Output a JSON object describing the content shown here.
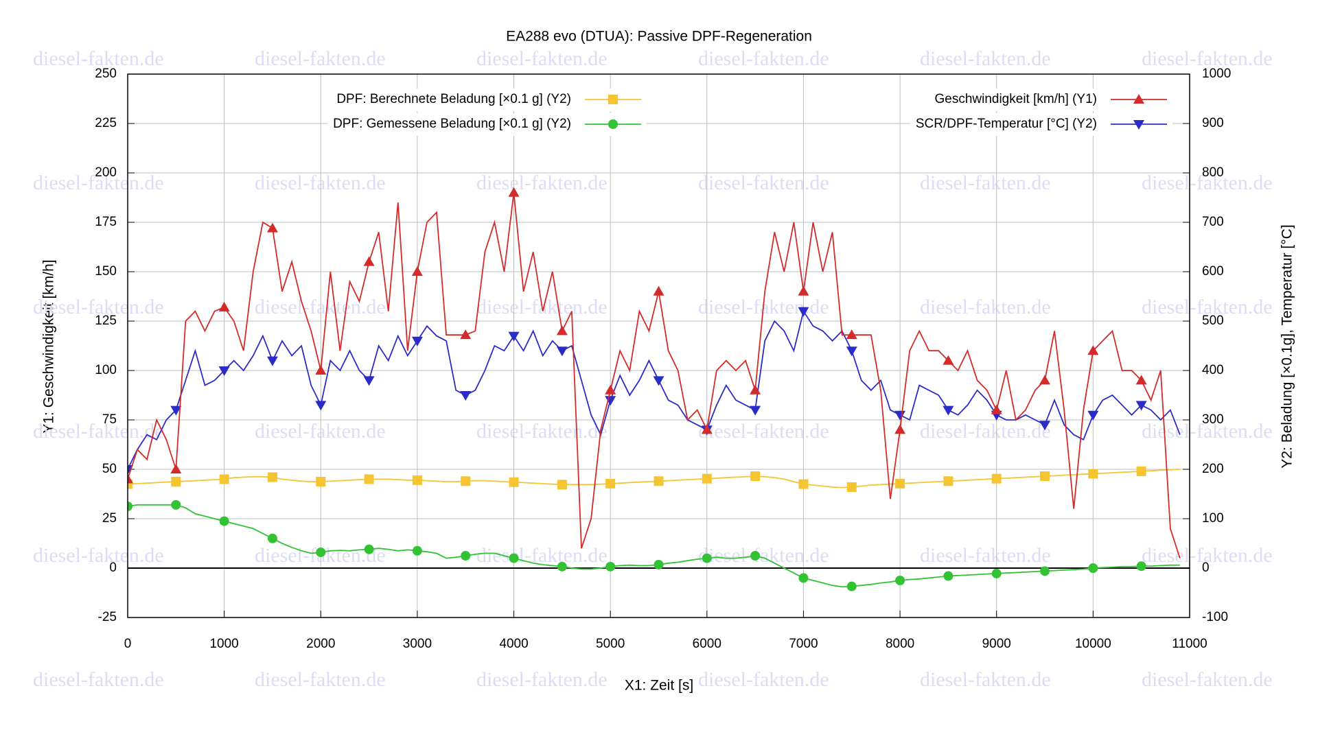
{
  "chart_data": {
    "type": "line",
    "title": "EA288 evo (DTUA): Passive DPF-Regeneration",
    "xlabel": "X1: Zeit [s]",
    "ylabel": "Y1: Geschwindigkeit [km/h]",
    "y2label": "Y2: Beladung [×0.1g], Temperatur [°C]",
    "watermark": "diesel-fakten.de",
    "grid": true,
    "xlim": [
      0,
      11000
    ],
    "xticks": [
      0,
      1000,
      2000,
      3000,
      4000,
      5000,
      6000,
      7000,
      8000,
      9000,
      10000,
      11000
    ],
    "ylim": [
      -25,
      250
    ],
    "yticks": [
      -25,
      0,
      25,
      50,
      75,
      100,
      125,
      150,
      175,
      200,
      225,
      250
    ],
    "y2lim": [
      -100,
      1000
    ],
    "y2ticks": [
      -100,
      0,
      100,
      200,
      300,
      400,
      500,
      600,
      700,
      800,
      900,
      1000
    ],
    "x": [
      0,
      100,
      200,
      300,
      400,
      500,
      600,
      700,
      800,
      900,
      1000,
      1100,
      1200,
      1300,
      1400,
      1500,
      1600,
      1700,
      1800,
      1900,
      2000,
      2100,
      2200,
      2300,
      2400,
      2500,
      2600,
      2700,
      2800,
      2900,
      3000,
      3100,
      3200,
      3300,
      3400,
      3500,
      3600,
      3700,
      3800,
      3900,
      4000,
      4100,
      4200,
      4300,
      4400,
      4500,
      4600,
      4700,
      4800,
      4900,
      5000,
      5100,
      5200,
      5300,
      5400,
      5500,
      5600,
      5700,
      5800,
      5900,
      6000,
      6100,
      6200,
      6300,
      6400,
      6500,
      6600,
      6700,
      6800,
      6900,
      7000,
      7100,
      7200,
      7300,
      7400,
      7500,
      7600,
      7700,
      7800,
      7900,
      8000,
      8100,
      8200,
      8300,
      8400,
      8500,
      8600,
      8700,
      8800,
      8900,
      9000,
      9100,
      9200,
      9300,
      9400,
      9500,
      9600,
      9700,
      9800,
      9900,
      10000,
      10100,
      10200,
      10300,
      10400,
      10500,
      10600,
      10700,
      10800,
      10900
    ],
    "series": [
      {
        "name": "Geschwindigkeit [km/h] (Y1)",
        "color": "#d42a2a",
        "marker": "triangle-up",
        "axis": "y",
        "values": [
          45,
          60,
          55,
          75,
          65,
          50,
          125,
          130,
          120,
          130,
          132,
          125,
          110,
          150,
          175,
          172,
          140,
          155,
          135,
          120,
          100,
          150,
          110,
          145,
          135,
          155,
          170,
          130,
          185,
          110,
          150,
          175,
          180,
          118,
          118,
          118,
          120,
          160,
          175,
          150,
          190,
          140,
          160,
          130,
          150,
          120,
          130,
          10,
          25,
          70,
          90,
          110,
          100,
          130,
          120,
          140,
          110,
          100,
          75,
          80,
          70,
          100,
          105,
          100,
          105,
          90,
          140,
          170,
          150,
          175,
          140,
          175,
          150,
          170,
          118,
          118,
          118,
          118,
          90,
          35,
          70,
          110,
          120,
          110,
          110,
          105,
          100,
          110,
          95,
          90,
          80,
          100,
          75,
          80,
          90,
          95,
          120,
          80,
          30,
          80,
          110,
          115,
          120,
          100,
          100,
          95,
          85,
          100,
          20,
          5
        ]
      },
      {
        "name": "SCR/DPF-Temperatur [°C] (Y2)",
        "color": "#2b2bc8",
        "marker": "triangle-down",
        "axis": "y2",
        "values": [
          200,
          240,
          270,
          260,
          300,
          320,
          380,
          440,
          370,
          380,
          400,
          420,
          400,
          430,
          470,
          420,
          460,
          430,
          450,
          370,
          330,
          420,
          400,
          440,
          400,
          380,
          450,
          420,
          470,
          430,
          460,
          490,
          470,
          460,
          360,
          350,
          360,
          400,
          450,
          440,
          470,
          440,
          480,
          430,
          460,
          440,
          450,
          380,
          310,
          270,
          340,
          390,
          350,
          380,
          420,
          380,
          340,
          330,
          300,
          290,
          280,
          330,
          370,
          340,
          330,
          320,
          460,
          500,
          480,
          440,
          520,
          490,
          480,
          460,
          480,
          440,
          380,
          360,
          380,
          320,
          310,
          300,
          370,
          360,
          350,
          320,
          310,
          330,
          360,
          340,
          310,
          300,
          300,
          310,
          300,
          290,
          340,
          290,
          270,
          260,
          310,
          340,
          350,
          330,
          310,
          330,
          320,
          300,
          320,
          270
        ]
      },
      {
        "name": "DPF: Berechnete Beladung [×0.1 g] (Y2)",
        "color": "#f5c431",
        "marker": "square",
        "axis": "y2",
        "values": [
          170,
          171,
          172,
          173,
          174,
          175,
          176,
          177,
          178,
          179,
          180,
          183,
          184,
          185,
          185,
          184,
          180,
          178,
          176,
          175,
          175,
          176,
          177,
          178,
          179,
          180,
          180,
          180,
          179,
          178,
          178,
          177,
          176,
          175,
          175,
          176,
          177,
          177,
          176,
          175,
          174,
          173,
          172,
          171,
          170,
          169,
          169,
          169,
          169,
          170,
          171,
          172,
          173,
          174,
          175,
          176,
          177,
          178,
          179,
          180,
          181,
          182,
          183,
          184,
          185,
          186,
          185,
          183,
          180,
          175,
          170,
          168,
          166,
          164,
          163,
          164,
          166,
          168,
          169,
          170,
          171,
          172,
          173,
          174,
          175,
          176,
          177,
          178,
          179,
          180,
          181,
          182,
          183,
          184,
          185,
          186,
          187,
          188,
          189,
          190,
          191,
          192,
          193,
          194,
          195,
          196,
          197,
          198,
          199,
          200
        ]
      },
      {
        "name": "DPF: Gemessene Beladung [×0.1 g] (Y2)",
        "color": "#33c233",
        "marker": "circle",
        "axis": "y2",
        "values": [
          125,
          128,
          128,
          128,
          128,
          128,
          122,
          110,
          105,
          100,
          95,
          90,
          85,
          80,
          70,
          60,
          50,
          42,
          35,
          30,
          32,
          35,
          36,
          35,
          37,
          38,
          40,
          38,
          35,
          37,
          35,
          33,
          30,
          20,
          22,
          25,
          28,
          30,
          30,
          25,
          20,
          15,
          10,
          7,
          5,
          3,
          0,
          -2,
          -2,
          0,
          3,
          5,
          6,
          5,
          5,
          7,
          10,
          12,
          15,
          18,
          20,
          22,
          20,
          20,
          22,
          25,
          20,
          10,
          0,
          -10,
          -20,
          -25,
          -30,
          -35,
          -38,
          -37,
          -35,
          -33,
          -30,
          -28,
          -25,
          -23,
          -22,
          -20,
          -18,
          -16,
          -15,
          -14,
          -13,
          -12,
          -11,
          -10,
          -9,
          -8,
          -7,
          -6,
          -5,
          -4,
          -3,
          -2,
          0,
          1,
          2,
          3,
          3,
          4,
          4,
          5,
          6,
          6
        ]
      }
    ]
  }
}
